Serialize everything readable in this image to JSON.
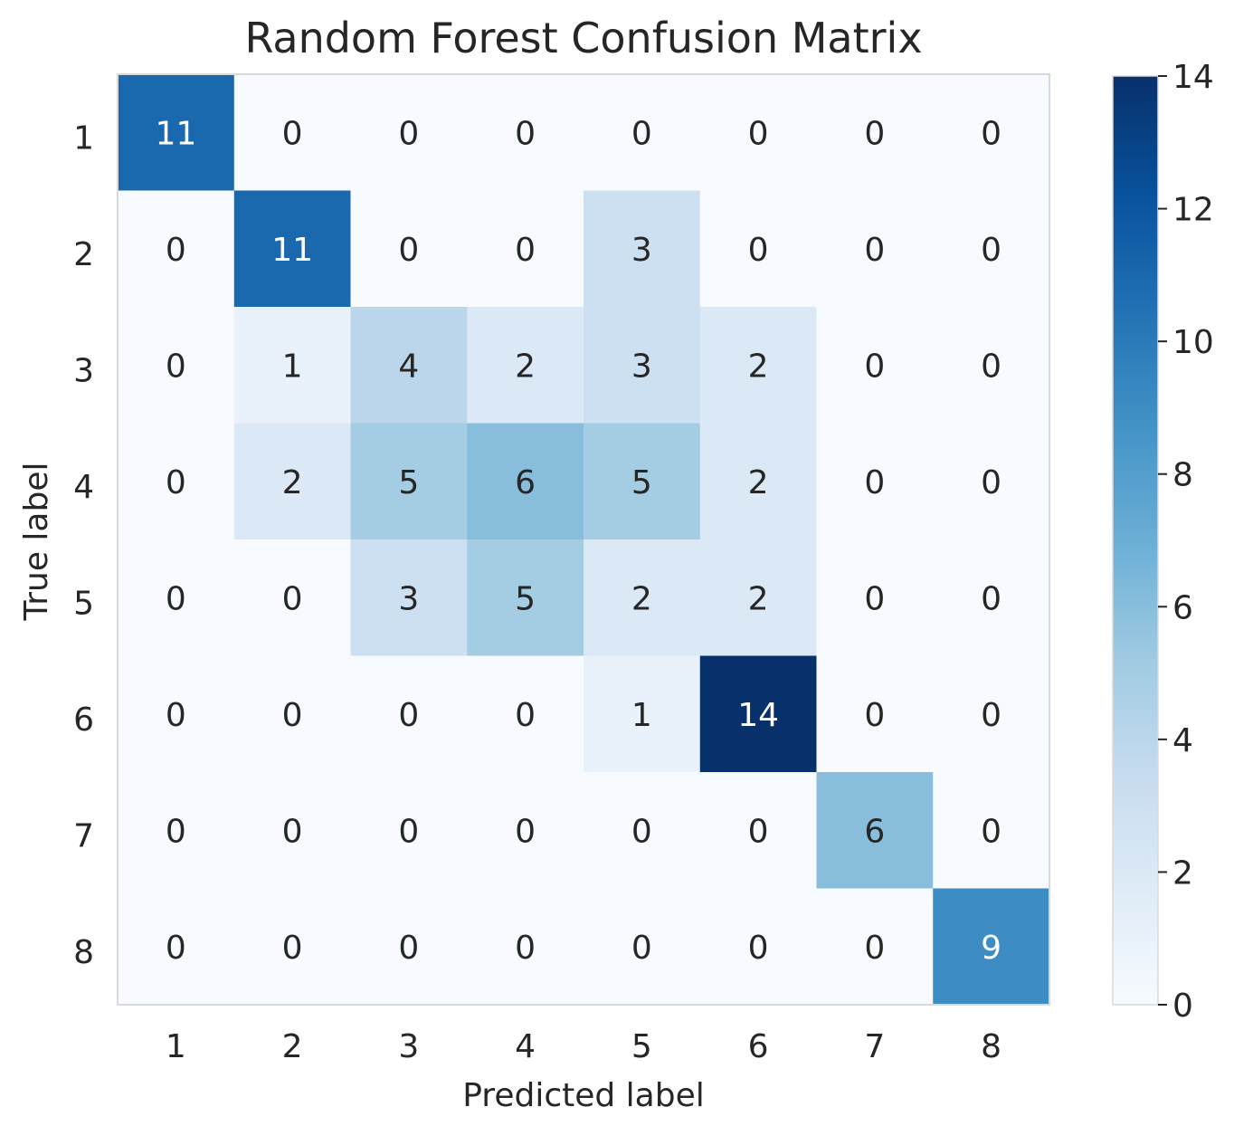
{
  "chart_data": {
    "type": "heatmap",
    "title": "Random Forest Confusion Matrix",
    "xlabel": "Predicted label",
    "ylabel": "True label",
    "x_categories": [
      "1",
      "2",
      "3",
      "4",
      "5",
      "6",
      "7",
      "8"
    ],
    "y_categories": [
      "1",
      "2",
      "3",
      "4",
      "5",
      "6",
      "7",
      "8"
    ],
    "matrix": [
      [
        11,
        0,
        0,
        0,
        0,
        0,
        0,
        0
      ],
      [
        0,
        11,
        0,
        0,
        3,
        0,
        0,
        0
      ],
      [
        0,
        1,
        4,
        2,
        3,
        2,
        0,
        0
      ],
      [
        0,
        2,
        5,
        6,
        5,
        2,
        0,
        0
      ],
      [
        0,
        0,
        3,
        5,
        2,
        2,
        0,
        0
      ],
      [
        0,
        0,
        0,
        0,
        1,
        14,
        0,
        0
      ],
      [
        0,
        0,
        0,
        0,
        0,
        0,
        6,
        0
      ],
      [
        0,
        0,
        0,
        0,
        0,
        0,
        0,
        9
      ]
    ],
    "colorbar": {
      "range": [
        0,
        14
      ],
      "ticks": [
        "0",
        "2",
        "4",
        "6",
        "8",
        "10",
        "12",
        "14"
      ],
      "colormap": "Blues"
    },
    "grid": false,
    "colors": {
      "low": "#f7fbff",
      "high": "#08306b",
      "text_dark": "#262626",
      "text_light": "#ffffff",
      "frame": "#d9d9d9"
    }
  }
}
